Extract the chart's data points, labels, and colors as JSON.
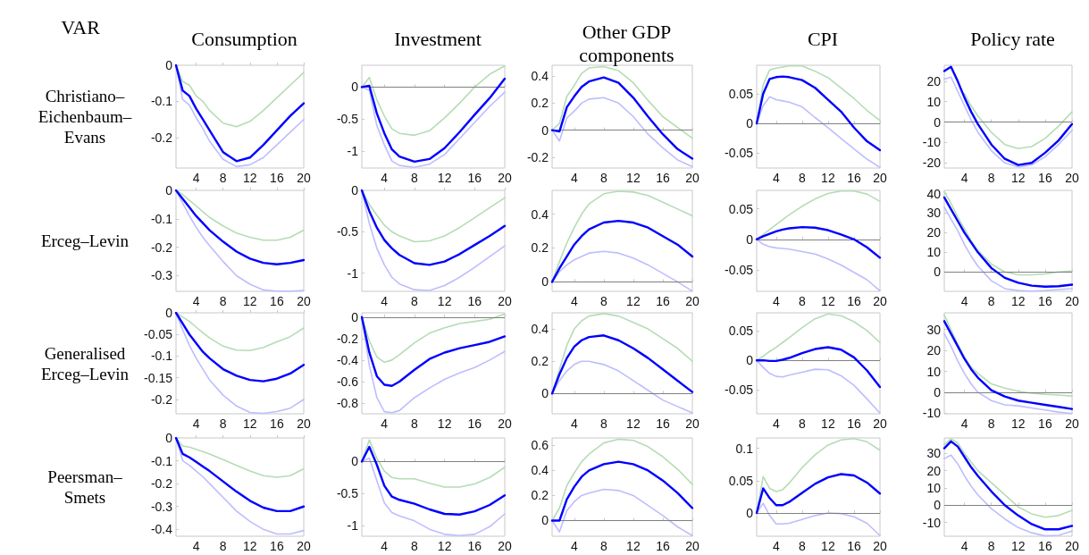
{
  "chart_data": [
    {
      "type": "other",
      "title": "VAR"
    },
    {
      "type": "line",
      "title": "Consumption",
      "ylabel": "Christiano–\nEichenbaum–\nEvans",
      "x": [
        1,
        2,
        3,
        4,
        5,
        6,
        8,
        10,
        12,
        14,
        16,
        18,
        20
      ],
      "xlim": [
        1,
        20
      ],
      "xticks": [
        4,
        8,
        12,
        16,
        20
      ],
      "ylim": [
        -0.284,
        0
      ],
      "yticks": [
        -0.2,
        -0.1,
        0
      ],
      "series": [
        {
          "color": "#b5dcb5",
          "values": [
            0,
            -0.045,
            -0.055,
            -0.085,
            -0.1,
            -0.125,
            -0.16,
            -0.17,
            -0.155,
            -0.125,
            -0.09,
            -0.055,
            -0.02
          ]
        },
        {
          "color": "#bdbdff",
          "values": [
            0,
            -0.095,
            -0.11,
            -0.145,
            -0.175,
            -0.21,
            -0.26,
            -0.28,
            -0.275,
            -0.255,
            -0.22,
            -0.185,
            -0.15
          ]
        },
        {
          "color": "#0000ff",
          "values": [
            0,
            -0.07,
            -0.085,
            -0.12,
            -0.15,
            -0.18,
            -0.24,
            -0.265,
            -0.255,
            -0.22,
            -0.18,
            -0.14,
            -0.105
          ]
        }
      ]
    },
    {
      "type": "line",
      "title": "Investment",
      "x": [
        1,
        2,
        3,
        4,
        5,
        6,
        8,
        10,
        12,
        14,
        16,
        18,
        20
      ],
      "xlim": [
        1,
        20
      ],
      "xticks": [
        4,
        8,
        12,
        16,
        20
      ],
      "ylim": [
        -1.26,
        0.34
      ],
      "yticks": [
        -1,
        -0.5,
        0
      ],
      "ref_lines": [
        {
          "axis": "y",
          "value": 0,
          "color": "#808080"
        }
      ],
      "series": [
        {
          "color": "#b5dcb5",
          "values": [
            0,
            0.15,
            -0.2,
            -0.45,
            -0.65,
            -0.72,
            -0.75,
            -0.68,
            -0.48,
            -0.25,
            0,
            0.2,
            0.33
          ]
        },
        {
          "color": "#bdbdff",
          "values": [
            0,
            -0.05,
            -0.6,
            -0.9,
            -1.15,
            -1.22,
            -1.25,
            -1.2,
            -1.05,
            -0.8,
            -0.55,
            -0.3,
            -0.08
          ]
        },
        {
          "color": "#0000ff",
          "values": [
            0,
            0.02,
            -0.41,
            -0.72,
            -0.97,
            -1.08,
            -1.16,
            -1.12,
            -0.95,
            -0.7,
            -0.43,
            -0.17,
            0.13
          ]
        }
      ]
    },
    {
      "type": "line",
      "title": "Other GDP\ncomponents",
      "x": [
        1,
        2,
        3,
        4,
        5,
        6,
        8,
        10,
        12,
        14,
        16,
        18,
        20
      ],
      "xlim": [
        1,
        20
      ],
      "xticks": [
        4,
        8,
        12,
        16,
        20
      ],
      "ylim": [
        -0.28,
        0.48
      ],
      "yticks": [
        -0.2,
        0,
        0.2,
        0.4
      ],
      "ref_lines": [
        {
          "axis": "y",
          "value": 0,
          "color": "#808080"
        }
      ],
      "series": [
        {
          "color": "#b5dcb5",
          "values": [
            0,
            0.05,
            0.25,
            0.33,
            0.42,
            0.46,
            0.47,
            0.44,
            0.35,
            0.22,
            0.1,
            0.02,
            -0.06
          ]
        },
        {
          "color": "#bdbdff",
          "values": [
            0,
            -0.08,
            0.09,
            0.14,
            0.2,
            0.23,
            0.24,
            0.2,
            0.1,
            -0.03,
            -0.13,
            -0.22,
            -0.27
          ]
        },
        {
          "color": "#0000ff",
          "values": [
            0,
            -0.01,
            0.17,
            0.25,
            0.32,
            0.36,
            0.39,
            0.35,
            0.24,
            0.1,
            -0.03,
            -0.14,
            -0.21
          ]
        }
      ]
    },
    {
      "type": "line",
      "title": "CPI",
      "x": [
        1,
        2,
        3,
        4,
        5,
        6,
        8,
        10,
        12,
        14,
        16,
        18,
        20
      ],
      "xlim": [
        1,
        20
      ],
      "xticks": [
        4,
        8,
        12,
        16,
        20
      ],
      "ylim": [
        -0.075,
        0.098
      ],
      "yticks": [
        -0.05,
        0,
        0.05
      ],
      "ref_lines": [
        {
          "axis": "y",
          "value": 0,
          "color": "#808080"
        }
      ],
      "series": [
        {
          "color": "#b5dcb5",
          "values": [
            0,
            0.065,
            0.09,
            0.093,
            0.095,
            0.097,
            0.097,
            0.088,
            0.077,
            0.06,
            0.042,
            0.022,
            0.005
          ]
        },
        {
          "color": "#bdbdff",
          "values": [
            0,
            0.03,
            0.045,
            0.04,
            0.038,
            0.036,
            0.028,
            0.01,
            -0.007,
            -0.025,
            -0.043,
            -0.06,
            -0.074
          ]
        },
        {
          "color": "#0000ff",
          "values": [
            0,
            0.05,
            0.075,
            0.078,
            0.079,
            0.078,
            0.073,
            0.06,
            0.04,
            0.02,
            -0.007,
            -0.03,
            -0.045
          ]
        }
      ]
    },
    {
      "type": "line",
      "title": "Policy rate",
      "x": [
        1,
        2,
        3,
        4,
        5,
        6,
        8,
        10,
        12,
        14,
        16,
        18,
        20
      ],
      "xlim": [
        1,
        20
      ],
      "xticks": [
        4,
        8,
        12,
        16,
        20
      ],
      "ylim": [
        -22.5,
        27.8
      ],
      "yticks": [
        -20,
        -10,
        0,
        10,
        20
      ],
      "ref_lines": [
        {
          "axis": "y",
          "value": 0,
          "color": "#808080"
        }
      ],
      "series": [
        {
          "color": "#b5dcb5",
          "values": [
            null,
            null,
            null,
            14,
            8,
            3,
            -5,
            -11,
            -13,
            -12,
            -8,
            -2,
            5
          ]
        },
        {
          "color": "#bdbdff",
          "values": [
            21,
            22,
            15,
            8,
            1,
            -5,
            -14,
            -20,
            -22,
            -21,
            -17,
            -11,
            -4
          ]
        },
        {
          "color": "#0000ff",
          "values": [
            25,
            27,
            20,
            12,
            5,
            -1,
            -11,
            -18,
            -21,
            -20,
            -15,
            -9,
            -1
          ]
        }
      ]
    },
    {
      "type": "line",
      "ylabel": "Erceg–Levin",
      "x": [
        1,
        2,
        3,
        4,
        5,
        6,
        8,
        10,
        12,
        14,
        16,
        18,
        20
      ],
      "xlim": [
        1,
        20
      ],
      "xticks": [
        4,
        8,
        12,
        16,
        20
      ],
      "ylim": [
        -0.355,
        0
      ],
      "yticks": [
        -0.3,
        -0.2,
        -0.1,
        0
      ],
      "series": [
        {
          "color": "#b5dcb5",
          "values": [
            0,
            -0.015,
            -0.035,
            -0.055,
            -0.075,
            -0.095,
            -0.125,
            -0.15,
            -0.165,
            -0.175,
            -0.175,
            -0.165,
            -0.14
          ]
        },
        {
          "color": "#bdbdff",
          "values": [
            0,
            -0.045,
            -0.09,
            -0.13,
            -0.165,
            -0.195,
            -0.25,
            -0.3,
            -0.33,
            -0.35,
            -0.354,
            -0.354,
            -0.352
          ]
        },
        {
          "color": "#0000ff",
          "values": [
            0,
            -0.03,
            -0.06,
            -0.09,
            -0.115,
            -0.14,
            -0.18,
            -0.215,
            -0.24,
            -0.255,
            -0.26,
            -0.255,
            -0.245
          ]
        }
      ]
    },
    {
      "type": "line",
      "x": [
        1,
        2,
        3,
        4,
        5,
        6,
        8,
        10,
        12,
        14,
        16,
        18,
        20
      ],
      "xlim": [
        1,
        20
      ],
      "xticks": [
        4,
        8,
        12,
        16,
        20
      ],
      "ylim": [
        -1.22,
        0
      ],
      "yticks": [
        -1,
        -0.5,
        0
      ],
      "series": [
        {
          "color": "#b5dcb5",
          "values": [
            0,
            -0.17,
            -0.3,
            -0.42,
            -0.5,
            -0.55,
            -0.62,
            -0.61,
            -0.55,
            -0.45,
            -0.33,
            -0.21,
            -0.09
          ]
        },
        {
          "color": "#bdbdff",
          "values": [
            0,
            -0.4,
            -0.7,
            -0.9,
            -1.05,
            -1.13,
            -1.2,
            -1.21,
            -1.15,
            -1.05,
            -0.93,
            -0.8,
            -0.67
          ]
        },
        {
          "color": "#0000ff",
          "values": [
            0,
            -0.25,
            -0.45,
            -0.6,
            -0.7,
            -0.78,
            -0.88,
            -0.9,
            -0.86,
            -0.77,
            -0.66,
            -0.55,
            -0.43
          ]
        }
      ]
    },
    {
      "type": "line",
      "x": [
        1,
        2,
        3,
        4,
        5,
        6,
        8,
        10,
        12,
        14,
        16,
        18,
        20
      ],
      "xlim": [
        1,
        20
      ],
      "xticks": [
        4,
        8,
        12,
        16,
        20
      ],
      "ylim": [
        -0.056,
        0.54
      ],
      "yticks": [
        0,
        0.2,
        0.4
      ],
      "ref_lines": [
        {
          "axis": "y",
          "value": 0,
          "color": "#808080"
        }
      ],
      "series": [
        {
          "color": "#b5dcb5",
          "values": [
            0,
            0.12,
            0.23,
            0.32,
            0.4,
            0.46,
            0.52,
            0.535,
            0.53,
            0.51,
            0.47,
            0.43,
            0.39
          ]
        },
        {
          "color": "#bdbdff",
          "values": [
            0,
            0.06,
            0.1,
            0.13,
            0.15,
            0.17,
            0.18,
            0.17,
            0.14,
            0.1,
            0.05,
            0,
            -0.055
          ]
        },
        {
          "color": "#0000ff",
          "values": [
            0,
            0.08,
            0.15,
            0.22,
            0.27,
            0.31,
            0.35,
            0.36,
            0.35,
            0.32,
            0.27,
            0.22,
            0.15
          ]
        }
      ]
    },
    {
      "type": "line",
      "x": [
        1,
        2,
        3,
        4,
        5,
        6,
        8,
        10,
        12,
        14,
        16,
        18,
        20
      ],
      "xlim": [
        1,
        20
      ],
      "xticks": [
        4,
        8,
        12,
        16,
        20
      ],
      "ylim": [
        -0.085,
        0.08
      ],
      "yticks": [
        -0.05,
        0,
        0.05
      ],
      "ref_lines": [
        {
          "axis": "y",
          "value": 0,
          "color": "#808080"
        }
      ],
      "series": [
        {
          "color": "#b5dcb5",
          "values": [
            0,
            0.008,
            0.016,
            0.024,
            0.032,
            0.04,
            0.054,
            0.066,
            0.075,
            0.079,
            0.079,
            0.074,
            0.062
          ]
        },
        {
          "color": "#bdbdff",
          "values": [
            0,
            -0.008,
            -0.012,
            -0.014,
            -0.015,
            -0.016,
            -0.02,
            -0.024,
            -0.032,
            -0.042,
            -0.054,
            -0.066,
            -0.084
          ]
        },
        {
          "color": "#0000ff",
          "values": [
            0,
            0.005,
            0.009,
            0.013,
            0.016,
            0.018,
            0.02,
            0.019,
            0.015,
            0.008,
            0,
            -0.013,
            -0.03
          ]
        }
      ]
    },
    {
      "type": "line",
      "x": [
        1,
        2,
        3,
        4,
        5,
        6,
        8,
        10,
        12,
        14,
        16,
        18,
        20
      ],
      "xlim": [
        1,
        20
      ],
      "xticks": [
        4,
        8,
        12,
        16,
        20
      ],
      "ylim": [
        -9.9,
        41.6
      ],
      "yticks": [
        0,
        10,
        20,
        30,
        40
      ],
      "ref_lines": [
        {
          "axis": "y",
          "value": 0,
          "color": "#808080"
        }
      ],
      "series": [
        {
          "color": "#b5dcb5",
          "values": [
            41,
            35,
            28,
            22,
            16,
            11,
            4,
            0,
            -1.5,
            -1.5,
            -1,
            0,
            0.5
          ]
        },
        {
          "color": "#bdbdff",
          "values": [
            33,
            27,
            21,
            14,
            8,
            3,
            -4.5,
            -8.5,
            -9.5,
            -9.8,
            -9.5,
            -9,
            -8.5
          ]
        },
        {
          "color": "#0000ff",
          "values": [
            38,
            32,
            26,
            20,
            15,
            10,
            2,
            -3,
            -5.5,
            -7,
            -7.5,
            -7.3,
            -6.5
          ]
        }
      ]
    },
    {
      "type": "line",
      "ylabel": "Generalised\nErceg–Levin",
      "x": [
        1,
        2,
        3,
        4,
        5,
        6,
        8,
        10,
        12,
        14,
        16,
        18,
        20
      ],
      "xlim": [
        1,
        20
      ],
      "xticks": [
        4,
        8,
        12,
        16,
        20
      ],
      "ylim": [
        -0.233,
        0
      ],
      "yticks": [
        -0.2,
        -0.15,
        -0.1,
        -0.05,
        0
      ],
      "series": [
        {
          "color": "#b5dcb5",
          "values": [
            0,
            -0.01,
            -0.02,
            -0.033,
            -0.046,
            -0.058,
            -0.077,
            -0.086,
            -0.087,
            -0.08,
            -0.067,
            -0.055,
            -0.035
          ]
        },
        {
          "color": "#bdbdff",
          "values": [
            0,
            -0.04,
            -0.075,
            -0.105,
            -0.13,
            -0.155,
            -0.19,
            -0.215,
            -0.23,
            -0.232,
            -0.228,
            -0.22,
            -0.2
          ]
        },
        {
          "color": "#0000ff",
          "values": [
            0,
            -0.025,
            -0.05,
            -0.07,
            -0.09,
            -0.105,
            -0.13,
            -0.145,
            -0.155,
            -0.158,
            -0.152,
            -0.14,
            -0.12
          ]
        }
      ]
    },
    {
      "type": "line",
      "x": [
        1,
        2,
        3,
        4,
        5,
        6,
        8,
        10,
        12,
        14,
        16,
        18,
        20
      ],
      "xlim": [
        1,
        20
      ],
      "xticks": [
        4,
        8,
        12,
        16,
        20
      ],
      "ylim": [
        -0.9,
        0.04
      ],
      "yticks": [
        -0.8,
        -0.6,
        -0.4,
        -0.2,
        0
      ],
      "ref_lines": [
        {
          "axis": "y",
          "value": 0,
          "color": "#808080"
        }
      ],
      "series": [
        {
          "color": "#b5dcb5",
          "values": [
            0,
            -0.22,
            -0.37,
            -0.42,
            -0.4,
            -0.35,
            -0.24,
            -0.15,
            -0.1,
            -0.06,
            -0.04,
            -0.02,
            0.03
          ]
        },
        {
          "color": "#bdbdff",
          "values": [
            0,
            -0.45,
            -0.75,
            -0.88,
            -0.89,
            -0.87,
            -0.75,
            -0.66,
            -0.58,
            -0.52,
            -0.47,
            -0.4,
            -0.32
          ]
        },
        {
          "color": "#0000ff",
          "values": [
            0,
            -0.33,
            -0.55,
            -0.63,
            -0.64,
            -0.6,
            -0.49,
            -0.39,
            -0.33,
            -0.29,
            -0.26,
            -0.23,
            -0.18
          ]
        }
      ]
    },
    {
      "type": "line",
      "x": [
        1,
        2,
        3,
        4,
        5,
        6,
        8,
        10,
        12,
        14,
        16,
        18,
        20
      ],
      "xlim": [
        1,
        20
      ],
      "xticks": [
        4,
        8,
        12,
        16,
        20
      ],
      "ylim": [
        -0.125,
        0.5
      ],
      "yticks": [
        0,
        0.2,
        0.4
      ],
      "ref_lines": [
        {
          "axis": "y",
          "value": 0,
          "color": "#808080"
        }
      ],
      "series": [
        {
          "color": "#b5dcb5",
          "values": [
            0,
            0.15,
            0.3,
            0.4,
            0.45,
            0.48,
            0.495,
            0.48,
            0.44,
            0.4,
            0.34,
            0.28,
            0.2
          ]
        },
        {
          "color": "#bdbdff",
          "values": [
            0,
            0.08,
            0.14,
            0.18,
            0.2,
            0.2,
            0.18,
            0.14,
            0.08,
            0.02,
            -0.04,
            -0.08,
            -0.12
          ]
        },
        {
          "color": "#0000ff",
          "values": [
            0,
            0.12,
            0.22,
            0.29,
            0.33,
            0.35,
            0.36,
            0.33,
            0.28,
            0.22,
            0.15,
            0.08,
            0.01
          ]
        }
      ]
    },
    {
      "type": "line",
      "x": [
        1,
        2,
        3,
        4,
        5,
        6,
        8,
        10,
        12,
        14,
        16,
        18,
        20
      ],
      "xlim": [
        1,
        20
      ],
      "xticks": [
        4,
        8,
        12,
        16,
        20
      ],
      "ylim": [
        -0.09,
        0.08
      ],
      "yticks": [
        -0.05,
        0,
        0.05
      ],
      "ref_lines": [
        {
          "axis": "y",
          "value": 0,
          "color": "#808080"
        }
      ],
      "series": [
        {
          "color": "#b5dcb5",
          "values": [
            0,
            0.007,
            0.015,
            0.022,
            0.03,
            0.038,
            0.055,
            0.07,
            0.078,
            0.075,
            0.065,
            0.05,
            0.03
          ]
        },
        {
          "color": "#bdbdff",
          "values": [
            0,
            -0.012,
            -0.022,
            -0.027,
            -0.028,
            -0.025,
            -0.02,
            -0.015,
            -0.016,
            -0.026,
            -0.042,
            -0.065,
            -0.089
          ]
        },
        {
          "color": "#0000ff",
          "values": [
            0,
            0,
            -0.001,
            -0.001,
            0.001,
            0.004,
            0.012,
            0.019,
            0.022,
            0.018,
            0.005,
            -0.017,
            -0.045
          ]
        }
      ]
    },
    {
      "type": "line",
      "x": [
        1,
        2,
        3,
        4,
        5,
        6,
        8,
        10,
        12,
        14,
        16,
        18,
        20
      ],
      "xlim": [
        1,
        20
      ],
      "xticks": [
        4,
        8,
        12,
        16,
        20
      ],
      "ylim": [
        -10.3,
        38
      ],
      "yticks": [
        -10,
        0,
        10,
        20,
        30
      ],
      "ref_lines": [
        {
          "axis": "y",
          "value": 0,
          "color": "#808080"
        }
      ],
      "series": [
        {
          "color": "#b5dcb5",
          "values": [
            37,
            30,
            23,
            17,
            12,
            9,
            4,
            2,
            0.5,
            -0.5,
            -1,
            -1.3,
            -1.8
          ]
        },
        {
          "color": "#bdbdff",
          "values": [
            28,
            22,
            15,
            9,
            4,
            0,
            -4,
            -6,
            -6.5,
            -7.5,
            -8.5,
            -9.5,
            -10.2
          ]
        },
        {
          "color": "#0000ff",
          "values": [
            34,
            28,
            22,
            16,
            11,
            7,
            1,
            -2,
            -4,
            -5,
            -6,
            -7,
            -8
          ]
        }
      ]
    },
    {
      "type": "line",
      "ylabel": "Peersman–\nSmets",
      "x": [
        1,
        2,
        3,
        4,
        5,
        6,
        8,
        10,
        12,
        14,
        16,
        18,
        20
      ],
      "xlim": [
        1,
        20
      ],
      "xticks": [
        4,
        8,
        12,
        16,
        20
      ],
      "ylim": [
        -0.43,
        0
      ],
      "yticks": [
        -0.4,
        -0.3,
        -0.2,
        -0.1,
        0
      ],
      "series": [
        {
          "color": "#b5dcb5",
          "values": [
            0,
            -0.035,
            -0.04,
            -0.05,
            -0.06,
            -0.07,
            -0.095,
            -0.12,
            -0.145,
            -0.165,
            -0.172,
            -0.165,
            -0.135
          ]
        },
        {
          "color": "#bdbdff",
          "values": [
            0,
            -0.1,
            -0.12,
            -0.145,
            -0.17,
            -0.2,
            -0.26,
            -0.32,
            -0.365,
            -0.4,
            -0.42,
            -0.42,
            -0.405
          ]
        },
        {
          "color": "#0000ff",
          "values": [
            0,
            -0.07,
            -0.085,
            -0.105,
            -0.125,
            -0.145,
            -0.19,
            -0.235,
            -0.275,
            -0.305,
            -0.32,
            -0.32,
            -0.3
          ]
        }
      ]
    },
    {
      "type": "line",
      "x": [
        1,
        2,
        3,
        4,
        5,
        6,
        8,
        10,
        12,
        14,
        16,
        18,
        20
      ],
      "xlim": [
        1,
        20
      ],
      "xticks": [
        4,
        8,
        12,
        16,
        20
      ],
      "ylim": [
        -1.17,
        0.37
      ],
      "yticks": [
        -1,
        -0.5,
        0
      ],
      "ref_lines": [
        {
          "axis": "y",
          "value": 0,
          "color": "#808080"
        }
      ],
      "series": [
        {
          "color": "#b5dcb5",
          "values": [
            0,
            0.34,
            0.05,
            -0.15,
            -0.25,
            -0.27,
            -0.27,
            -0.34,
            -0.4,
            -0.4,
            -0.35,
            -0.25,
            -0.09
          ]
        },
        {
          "color": "#bdbdff",
          "values": [
            0,
            0.05,
            -0.3,
            -0.65,
            -0.8,
            -0.85,
            -0.93,
            -1.06,
            -1.14,
            -1.16,
            -1.14,
            -1.02,
            -0.82
          ]
        },
        {
          "color": "#0000ff",
          "values": [
            0,
            0.23,
            -0.05,
            -0.38,
            -0.55,
            -0.6,
            -0.66,
            -0.75,
            -0.82,
            -0.83,
            -0.78,
            -0.68,
            -0.53
          ]
        }
      ]
    },
    {
      "type": "line",
      "x": [
        1,
        2,
        3,
        4,
        5,
        6,
        8,
        10,
        12,
        14,
        16,
        18,
        20
      ],
      "xlim": [
        1,
        20
      ],
      "xticks": [
        4,
        8,
        12,
        16,
        20
      ],
      "ylim": [
        -0.125,
        0.66
      ],
      "yticks": [
        0,
        0.2,
        0.4,
        0.6
      ],
      "ref_lines": [
        {
          "axis": "y",
          "value": 0,
          "color": "#808080"
        }
      ],
      "series": [
        {
          "color": "#b5dcb5",
          "values": [
            0,
            0.1,
            0.28,
            0.38,
            0.47,
            0.53,
            0.62,
            0.65,
            0.64,
            0.59,
            0.51,
            0.41,
            0.29
          ]
        },
        {
          "color": "#bdbdff",
          "values": [
            0,
            -0.09,
            0.08,
            0.15,
            0.2,
            0.22,
            0.25,
            0.24,
            0.2,
            0.12,
            0.04,
            -0.05,
            -0.12
          ]
        },
        {
          "color": "#0000ff",
          "values": [
            0,
            0,
            0.17,
            0.27,
            0.35,
            0.4,
            0.45,
            0.47,
            0.45,
            0.4,
            0.32,
            0.22,
            0.1
          ]
        }
      ]
    },
    {
      "type": "line",
      "x": [
        1,
        2,
        3,
        4,
        5,
        6,
        8,
        10,
        12,
        14,
        16,
        18,
        20
      ],
      "xlim": [
        1,
        20
      ],
      "xticks": [
        4,
        8,
        12,
        16,
        20
      ],
      "ylim": [
        -0.036,
        0.116
      ],
      "yticks": [
        0,
        0.05,
        0.1
      ],
      "ref_lines": [
        {
          "axis": "y",
          "value": 0,
          "color": "#808080"
        }
      ],
      "series": [
        {
          "color": "#b5dcb5",
          "values": [
            0,
            0.056,
            0.038,
            0.033,
            0.036,
            0.046,
            0.07,
            0.09,
            0.105,
            0.113,
            0.115,
            0.11,
            0.097
          ]
        },
        {
          "color": "#bdbdff",
          "values": [
            0,
            0.015,
            -0.004,
            -0.017,
            -0.017,
            -0.016,
            -0.01,
            -0.004,
            0,
            -0.001,
            -0.006,
            -0.016,
            -0.035
          ]
        },
        {
          "color": "#0000ff",
          "values": [
            0,
            0.038,
            0.023,
            0.012,
            0.012,
            0.017,
            0.031,
            0.045,
            0.055,
            0.06,
            0.058,
            0.047,
            0.03
          ]
        }
      ]
    },
    {
      "type": "line",
      "x": [
        1,
        2,
        3,
        4,
        5,
        6,
        8,
        10,
        12,
        14,
        16,
        18,
        20
      ],
      "xlim": [
        1,
        20
      ],
      "xticks": [
        4,
        8,
        12,
        16,
        20
      ],
      "ylim": [
        -18,
        39
      ],
      "yticks": [
        -10,
        0,
        10,
        20,
        30
      ],
      "ref_lines": [
        {
          "axis": "y",
          "value": 0,
          "color": "#808080"
        }
      ],
      "series": [
        {
          "color": "#b5dcb5",
          "values": [
            35,
            38.5,
            36,
            30,
            25,
            20,
            13,
            6,
            -1,
            -5,
            -7,
            -6,
            -3
          ]
        },
        {
          "color": "#bdbdff",
          "values": [
            27,
            29,
            24,
            17,
            11,
            6,
            -2,
            -8,
            -13,
            -16,
            -17.8,
            -17.5,
            -15
          ]
        },
        {
          "color": "#0000ff",
          "values": [
            33,
            37,
            34,
            28,
            22,
            17,
            8,
            0,
            -6,
            -11,
            -14,
            -14,
            -12
          ]
        }
      ]
    }
  ]
}
